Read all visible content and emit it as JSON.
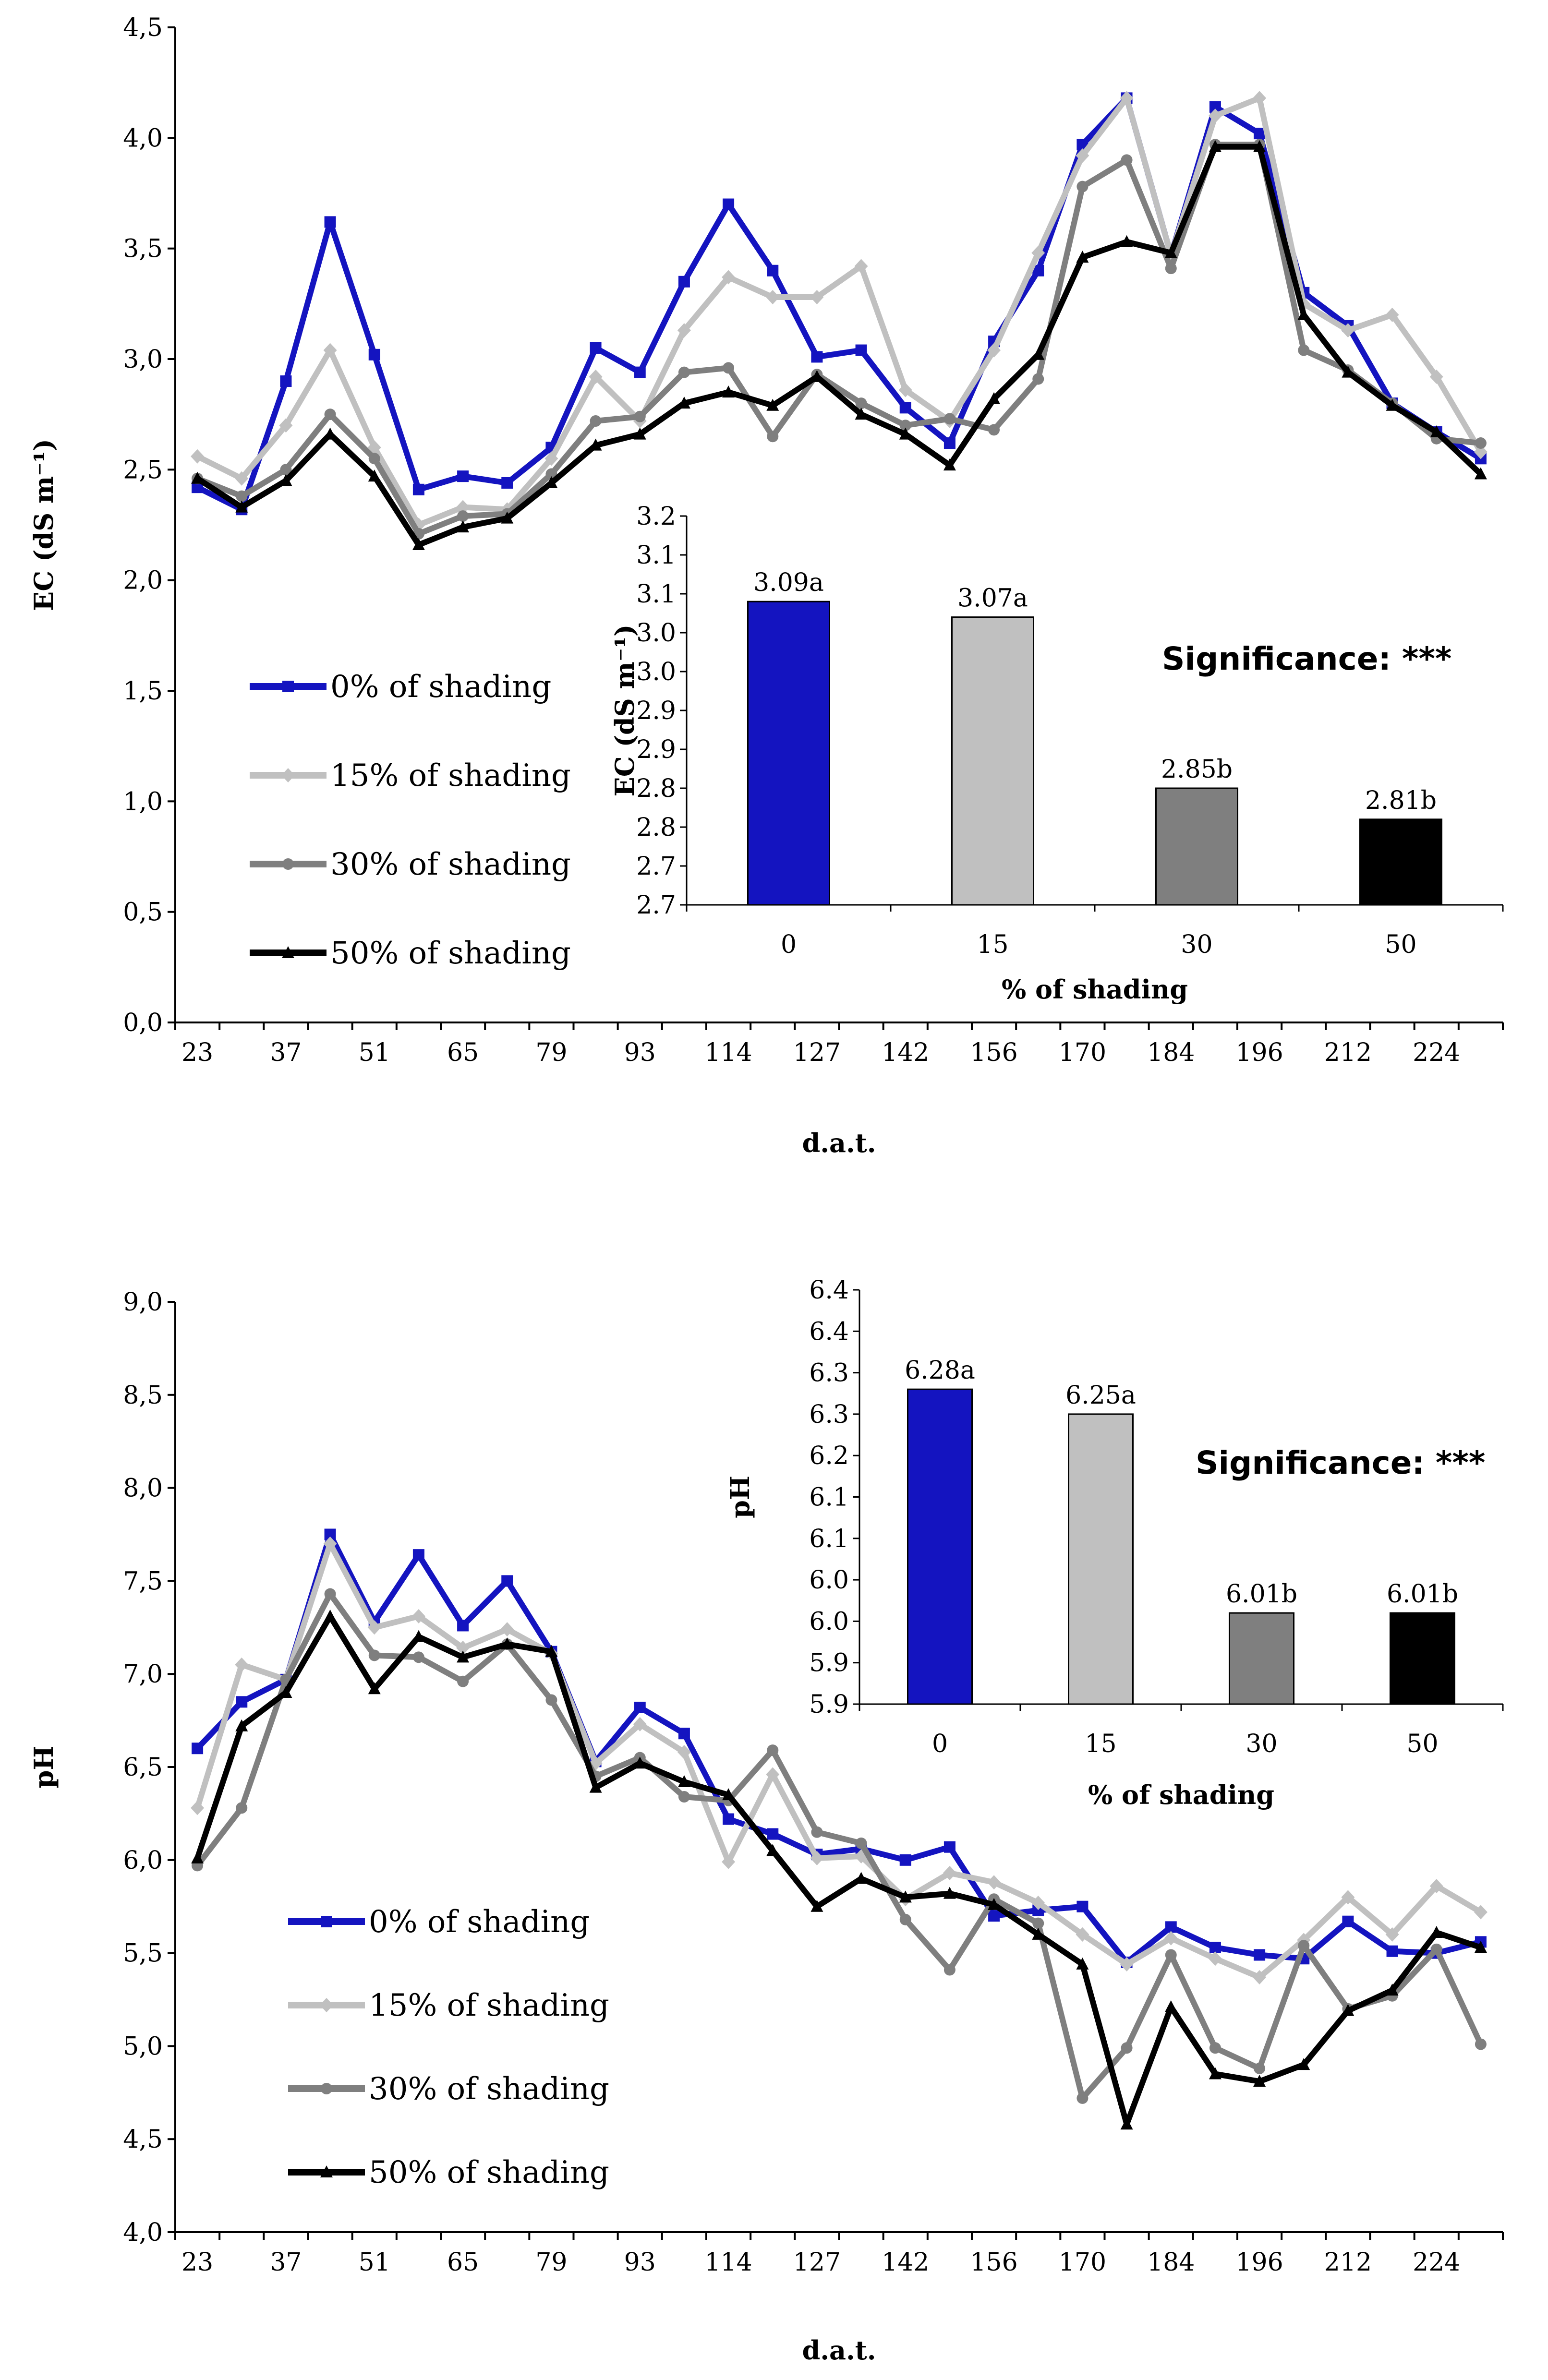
{
  "colors": {
    "s0": "#1414c0",
    "s15": "#c0c0c0",
    "s30": "#7f7f7f",
    "s50": "#000000",
    "axis": "#000000"
  },
  "chart_data": [
    {
      "type": "line",
      "ylabel": "EC (dS m⁻¹)",
      "xlabel": "d.a.t.",
      "ylim": [
        0,
        4.5
      ],
      "yticks": [
        "0,0",
        "0,5",
        "1,0",
        "1,5",
        "2,0",
        "2,5",
        "3,0",
        "3,5",
        "4,0",
        "4,5"
      ],
      "xtick_labels": [
        "23",
        "37",
        "51",
        "65",
        "79",
        "93",
        "114",
        "127",
        "142",
        "156",
        "170",
        "184",
        "196",
        "212",
        "224"
      ],
      "legend_position": "left",
      "series": [
        {
          "name": "0% of shading",
          "marker": "square",
          "values": [
            2.42,
            2.32,
            2.9,
            3.62,
            3.02,
            2.41,
            2.47,
            2.44,
            2.6,
            3.05,
            2.94,
            3.35,
            3.7,
            3.4,
            3.01,
            3.04,
            2.78,
            2.62,
            3.08,
            3.4,
            3.97,
            4.18,
            3.47,
            4.14,
            4.02,
            3.3,
            3.15,
            2.8,
            2.67,
            2.55
          ]
        },
        {
          "name": "15% of shading",
          "marker": "diamond",
          "values": [
            2.56,
            2.46,
            2.7,
            3.04,
            2.6,
            2.25,
            2.33,
            2.32,
            2.55,
            2.92,
            2.72,
            3.13,
            3.37,
            3.28,
            3.28,
            3.42,
            2.86,
            2.72,
            3.04,
            3.48,
            3.92,
            4.18,
            3.47,
            4.1,
            4.18,
            3.25,
            3.13,
            3.2,
            2.92,
            2.58
          ]
        },
        {
          "name": "30% of shading",
          "marker": "circle",
          "values": [
            2.46,
            2.38,
            2.5,
            2.75,
            2.55,
            2.21,
            2.29,
            2.3,
            2.48,
            2.72,
            2.74,
            2.94,
            2.96,
            2.65,
            2.93,
            2.8,
            2.7,
            2.73,
            2.68,
            2.91,
            3.78,
            3.9,
            3.41,
            3.97,
            3.97,
            3.04,
            2.95,
            2.8,
            2.64,
            2.62
          ]
        },
        {
          "name": "50% of shading",
          "marker": "triangle",
          "values": [
            2.46,
            2.33,
            2.45,
            2.66,
            2.47,
            2.16,
            2.24,
            2.28,
            2.44,
            2.61,
            2.66,
            2.8,
            2.85,
            2.79,
            2.92,
            2.75,
            2.66,
            2.52,
            2.82,
            3.02,
            3.46,
            3.53,
            3.48,
            3.96,
            3.96,
            3.2,
            2.94,
            2.79,
            2.67,
            2.48
          ]
        }
      ]
    },
    {
      "type": "bar",
      "ylabel": "EC (dS m⁻¹)",
      "xlabel": "% of shading",
      "categories": [
        "0",
        "15",
        "30",
        "50"
      ],
      "values": [
        3.09,
        3.07,
        2.85,
        2.81
      ],
      "labels": [
        "3.09a",
        "3.07a",
        "2.85b",
        "2.81b"
      ],
      "ylim": [
        2.7,
        3.2
      ],
      "yticks": [
        "2.7",
        "2.7",
        "2.8",
        "2.8",
        "2.9",
        "2.9",
        "3.0",
        "3.0",
        "3.1",
        "3.1",
        "3.2"
      ],
      "annotation": "Significance: ***"
    },
    {
      "type": "line",
      "ylabel": "pH",
      "xlabel": "d.a.t.",
      "ylim": [
        4.0,
        9.0
      ],
      "yticks": [
        "4,0",
        "4,5",
        "5,0",
        "5,5",
        "6,0",
        "6,5",
        "7,0",
        "7,5",
        "8,0",
        "8,5",
        "9,0"
      ],
      "xtick_labels": [
        "23",
        "37",
        "51",
        "65",
        "79",
        "93",
        "114",
        "127",
        "142",
        "156",
        "170",
        "184",
        "196",
        "212",
        "224"
      ],
      "legend_position": "left",
      "series": [
        {
          "name": "0% of shading",
          "marker": "square",
          "values": [
            6.6,
            6.85,
            6.97,
            7.75,
            7.28,
            7.64,
            7.26,
            7.5,
            7.12,
            6.53,
            6.82,
            6.68,
            6.22,
            6.14,
            6.03,
            6.06,
            6.0,
            6.07,
            5.7,
            5.73,
            5.75,
            5.45,
            5.64,
            5.53,
            5.49,
            5.47,
            5.67,
            5.51,
            5.5,
            5.56
          ]
        },
        {
          "name": "15% of shading",
          "marker": "diamond",
          "values": [
            6.28,
            7.05,
            6.97,
            7.7,
            7.25,
            7.31,
            7.14,
            7.24,
            7.11,
            6.52,
            6.73,
            6.58,
            5.99,
            6.46,
            6.01,
            6.02,
            5.79,
            5.93,
            5.88,
            5.77,
            5.6,
            5.44,
            5.58,
            5.47,
            5.37,
            5.57,
            5.8,
            5.6,
            5.86,
            5.72
          ]
        },
        {
          "name": "30% of shading",
          "marker": "circle",
          "values": [
            5.97,
            6.28,
            6.97,
            7.43,
            7.1,
            7.09,
            6.96,
            7.16,
            6.86,
            6.45,
            6.55,
            6.34,
            6.32,
            6.59,
            6.15,
            6.09,
            5.68,
            5.41,
            5.79,
            5.66,
            4.72,
            4.99,
            5.49,
            4.99,
            4.88,
            5.54,
            5.2,
            5.27,
            5.52,
            5.01
          ]
        },
        {
          "name": "50% of shading",
          "marker": "triangle",
          "values": [
            6.01,
            6.72,
            6.9,
            7.31,
            6.92,
            7.2,
            7.09,
            7.16,
            7.12,
            6.39,
            6.52,
            6.42,
            6.35,
            6.05,
            5.75,
            5.9,
            5.8,
            5.82,
            5.76,
            5.6,
            5.44,
            4.58,
            5.21,
            4.85,
            4.81,
            4.9,
            5.19,
            5.3,
            5.61,
            5.53
          ]
        }
      ]
    },
    {
      "type": "bar",
      "ylabel": "pH",
      "xlabel": "% of shading",
      "categories": [
        "0",
        "15",
        "30",
        "50"
      ],
      "values": [
        6.28,
        6.25,
        6.01,
        6.01
      ],
      "labels": [
        "6.28a",
        "6.25a",
        "6.01b",
        "6.01b"
      ],
      "ylim": [
        5.9,
        6.4
      ],
      "yticks": [
        "5.9",
        "5.9",
        "6.0",
        "6.0",
        "6.1",
        "6.1",
        "6.2",
        "6.3",
        "6.3",
        "6.4",
        "6.4"
      ],
      "annotation": "Significance: ***"
    }
  ]
}
